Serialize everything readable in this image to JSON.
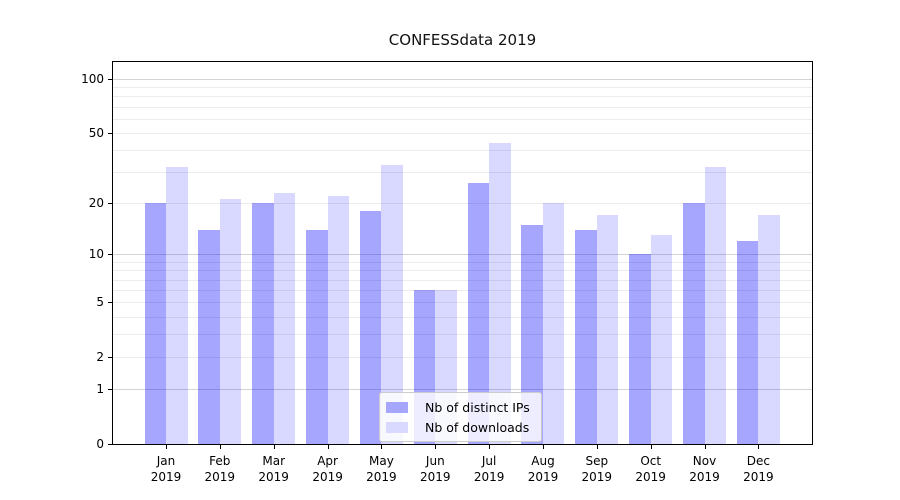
{
  "figure": {
    "title": "CONFESSdata 2019"
  },
  "chart_data": {
    "type": "bar",
    "title": "CONFESSdata 2019",
    "categories": [
      "Jan 2019",
      "Feb 2019",
      "Mar 2019",
      "Apr 2019",
      "May 2019",
      "Jun 2019",
      "Jul 2019",
      "Aug 2019",
      "Sep 2019",
      "Oct 2019",
      "Nov 2019",
      "Dec 2019"
    ],
    "category_month_labels": [
      "Jan",
      "Feb",
      "Mar",
      "Apr",
      "May",
      "Jun",
      "Jul",
      "Aug",
      "Sep",
      "Oct",
      "Nov",
      "Dec"
    ],
    "category_year_label": "2019",
    "series": [
      {
        "name": "Nb of distinct IPs",
        "values": [
          20,
          14,
          20,
          14,
          18,
          6,
          26,
          15,
          14,
          10,
          20,
          12
        ],
        "color_hex": "#a6a6ff",
        "color_rgba": "rgba(0,0,255,0.35)"
      },
      {
        "name": "Nb of downloads",
        "values": [
          32,
          21,
          23,
          22,
          33,
          6,
          44,
          20,
          17,
          13,
          32,
          17
        ],
        "color_hex": "#d9d9ff",
        "color_rgba": "rgba(0,0,255,0.15)"
      }
    ],
    "xlabel": "",
    "ylabel": "",
    "yscale": "log1p",
    "ylim": [
      0,
      124
    ],
    "ytick_values": [
      0,
      1,
      2,
      5,
      10,
      20,
      50,
      100
    ],
    "ytick_labels": [
      "0",
      "1",
      "2",
      "5",
      "10",
      "20",
      "50",
      "100"
    ],
    "grid": "both",
    "gridline_major_values": [
      1,
      10,
      100
    ],
    "gridline_minor_values": [
      2,
      3,
      4,
      5,
      6,
      7,
      8,
      9,
      20,
      30,
      40,
      50,
      60,
      70,
      80,
      90
    ],
    "legend": {
      "entries": [
        "Nb of distinct IPs",
        "Nb of downloads"
      ],
      "position": "lower center"
    }
  },
  "colors": {
    "bar_distinct_ips": "#a6a6ff",
    "bar_downloads": "#d9d9ff",
    "grid_major": "#d4d4d4",
    "grid_minor": "#ececec",
    "axis": "#000000",
    "background": "#ffffff"
  }
}
